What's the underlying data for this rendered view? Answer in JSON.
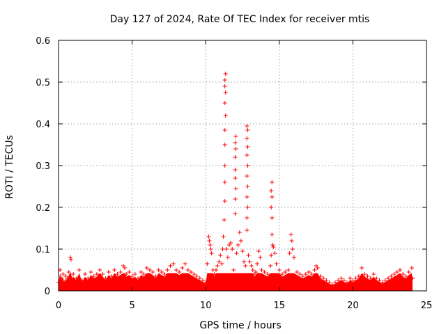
{
  "chart_data": {
    "type": "scatter",
    "title": "Day 127 of 2024, Rate Of TEC Index for receiver mtis",
    "xlabel": "GPS time / hours",
    "ylabel": "ROTI / TECUs",
    "xlim": [
      0,
      25
    ],
    "ylim": [
      0,
      0.6
    ],
    "xticks": [
      0,
      5,
      10,
      15,
      20,
      25
    ],
    "xtick_labels": [
      "0",
      "5",
      "10",
      "15",
      "20",
      "25"
    ],
    "yticks": [
      0,
      0.1,
      0.2,
      0.3,
      0.4,
      0.5,
      0.6
    ],
    "ytick_labels": [
      "0",
      "0.1",
      "0.2",
      "0.3",
      "0.4",
      "0.5",
      "0.6"
    ],
    "grid": true,
    "marker": "+",
    "color": "#ff0000",
    "series": [
      {
        "name": "mtis",
        "points": [
          [
            0.0,
            0.02
          ],
          [
            0.1,
            0.05
          ],
          [
            0.2,
            0.03
          ],
          [
            0.3,
            0.04
          ],
          [
            0.4,
            0.02
          ],
          [
            0.5,
            0.035
          ],
          [
            0.6,
            0.03
          ],
          [
            0.7,
            0.045
          ],
          [
            0.8,
            0.08
          ],
          [
            0.85,
            0.075
          ],
          [
            0.9,
            0.03
          ],
          [
            1.0,
            0.04
          ],
          [
            1.2,
            0.03
          ],
          [
            1.4,
            0.05
          ],
          [
            1.6,
            0.025
          ],
          [
            1.8,
            0.04
          ],
          [
            2.0,
            0.03
          ],
          [
            2.2,
            0.045
          ],
          [
            2.4,
            0.035
          ],
          [
            2.6,
            0.04
          ],
          [
            2.8,
            0.05
          ],
          [
            3.0,
            0.04
          ],
          [
            3.2,
            0.03
          ],
          [
            3.4,
            0.045
          ],
          [
            3.6,
            0.035
          ],
          [
            3.8,
            0.05
          ],
          [
            4.0,
            0.04
          ],
          [
            4.2,
            0.045
          ],
          [
            4.4,
            0.06
          ],
          [
            4.5,
            0.055
          ],
          [
            4.6,
            0.04
          ],
          [
            4.8,
            0.045
          ],
          [
            5.0,
            0.035
          ],
          [
            5.2,
            0.04
          ],
          [
            5.4,
            0.03
          ],
          [
            5.6,
            0.045
          ],
          [
            5.8,
            0.04
          ],
          [
            6.0,
            0.055
          ],
          [
            6.2,
            0.05
          ],
          [
            6.4,
            0.045
          ],
          [
            6.6,
            0.035
          ],
          [
            6.8,
            0.05
          ],
          [
            7.0,
            0.045
          ],
          [
            7.2,
            0.04
          ],
          [
            7.4,
            0.05
          ],
          [
            7.6,
            0.06
          ],
          [
            7.8,
            0.065
          ],
          [
            8.0,
            0.05
          ],
          [
            8.2,
            0.045
          ],
          [
            8.4,
            0.055
          ],
          [
            8.6,
            0.065
          ],
          [
            8.8,
            0.05
          ],
          [
            9.0,
            0.045
          ],
          [
            9.2,
            0.04
          ],
          [
            9.4,
            0.035
          ],
          [
            9.6,
            0.03
          ],
          [
            9.8,
            0.025
          ],
          [
            10.0,
            0.02
          ],
          [
            10.1,
            0.065
          ],
          [
            10.2,
            0.13
          ],
          [
            10.25,
            0.12
          ],
          [
            10.3,
            0.11
          ],
          [
            10.35,
            0.1
          ],
          [
            10.4,
            0.09
          ],
          [
            10.5,
            0.05
          ],
          [
            10.6,
            0.04
          ],
          [
            10.7,
            0.05
          ],
          [
            10.8,
            0.06
          ],
          [
            10.9,
            0.07
          ],
          [
            11.0,
            0.085
          ],
          [
            11.1,
            0.065
          ],
          [
            11.15,
            0.1
          ],
          [
            11.2,
            0.13
          ],
          [
            11.25,
            0.17
          ],
          [
            11.3,
            0.215
          ],
          [
            11.3,
            0.26
          ],
          [
            11.3,
            0.3
          ],
          [
            11.3,
            0.35
          ],
          [
            11.3,
            0.385
          ],
          [
            11.35,
            0.42
          ],
          [
            11.3,
            0.45
          ],
          [
            11.35,
            0.475
          ],
          [
            11.3,
            0.49
          ],
          [
            11.3,
            0.505
          ],
          [
            11.35,
            0.52
          ],
          [
            11.4,
            0.1
          ],
          [
            11.5,
            0.08
          ],
          [
            11.6,
            0.11
          ],
          [
            11.7,
            0.115
          ],
          [
            11.8,
            0.1
          ],
          [
            11.9,
            0.05
          ],
          [
            12.0,
            0.185
          ],
          [
            12.0,
            0.22
          ],
          [
            12.05,
            0.245
          ],
          [
            12.0,
            0.27
          ],
          [
            12.0,
            0.29
          ],
          [
            12.0,
            0.32
          ],
          [
            12.05,
            0.34
          ],
          [
            12.0,
            0.355
          ],
          [
            12.05,
            0.37
          ],
          [
            12.1,
            0.09
          ],
          [
            12.2,
            0.11
          ],
          [
            12.3,
            0.14
          ],
          [
            12.4,
            0.12
          ],
          [
            12.5,
            0.095
          ],
          [
            12.6,
            0.07
          ],
          [
            12.7,
            0.06
          ],
          [
            12.8,
            0.145
          ],
          [
            12.8,
            0.175
          ],
          [
            12.85,
            0.2
          ],
          [
            12.8,
            0.225
          ],
          [
            12.85,
            0.25
          ],
          [
            12.8,
            0.275
          ],
          [
            12.85,
            0.3
          ],
          [
            12.8,
            0.325
          ],
          [
            12.85,
            0.345
          ],
          [
            12.8,
            0.365
          ],
          [
            12.85,
            0.385
          ],
          [
            12.8,
            0.395
          ],
          [
            12.9,
            0.085
          ],
          [
            13.0,
            0.07
          ],
          [
            13.1,
            0.06
          ],
          [
            13.2,
            0.05
          ],
          [
            13.3,
            0.04
          ],
          [
            13.4,
            0.045
          ],
          [
            13.5,
            0.065
          ],
          [
            13.6,
            0.095
          ],
          [
            13.7,
            0.08
          ],
          [
            13.8,
            0.05
          ],
          [
            14.0,
            0.045
          ],
          [
            14.2,
            0.04
          ],
          [
            14.4,
            0.06
          ],
          [
            14.45,
            0.085
          ],
          [
            14.5,
            0.135
          ],
          [
            14.5,
            0.175
          ],
          [
            14.45,
            0.2
          ],
          [
            14.5,
            0.225
          ],
          [
            14.45,
            0.24
          ],
          [
            14.5,
            0.26
          ],
          [
            14.55,
            0.11
          ],
          [
            14.6,
            0.105
          ],
          [
            14.7,
            0.09
          ],
          [
            14.8,
            0.065
          ],
          [
            15.0,
            0.05
          ],
          [
            15.2,
            0.04
          ],
          [
            15.4,
            0.045
          ],
          [
            15.6,
            0.05
          ],
          [
            15.7,
            0.09
          ],
          [
            15.8,
            0.135
          ],
          [
            15.85,
            0.12
          ],
          [
            15.9,
            0.1
          ],
          [
            16.0,
            0.08
          ],
          [
            16.2,
            0.045
          ],
          [
            16.4,
            0.04
          ],
          [
            16.6,
            0.035
          ],
          [
            16.8,
            0.04
          ],
          [
            17.0,
            0.045
          ],
          [
            17.2,
            0.04
          ],
          [
            17.4,
            0.05
          ],
          [
            17.5,
            0.06
          ],
          [
            17.6,
            0.055
          ],
          [
            17.8,
            0.035
          ],
          [
            18.0,
            0.03
          ],
          [
            18.2,
            0.025
          ],
          [
            18.4,
            0.02
          ],
          [
            18.6,
            0.015
          ],
          [
            18.8,
            0.02
          ],
          [
            19.0,
            0.025
          ],
          [
            19.2,
            0.03
          ],
          [
            19.4,
            0.025
          ],
          [
            19.6,
            0.02
          ],
          [
            19.8,
            0.03
          ],
          [
            20.0,
            0.025
          ],
          [
            20.2,
            0.03
          ],
          [
            20.4,
            0.035
          ],
          [
            20.6,
            0.055
          ],
          [
            20.8,
            0.04
          ],
          [
            21.0,
            0.035
          ],
          [
            21.2,
            0.03
          ],
          [
            21.4,
            0.04
          ],
          [
            21.6,
            0.03
          ],
          [
            21.8,
            0.025
          ],
          [
            22.0,
            0.02
          ],
          [
            22.2,
            0.025
          ],
          [
            22.4,
            0.03
          ],
          [
            22.6,
            0.035
          ],
          [
            22.8,
            0.04
          ],
          [
            23.0,
            0.045
          ],
          [
            23.2,
            0.05
          ],
          [
            23.4,
            0.04
          ],
          [
            23.6,
            0.035
          ],
          [
            23.8,
            0.045
          ],
          [
            24.0,
            0.055
          ],
          [
            24.05,
            0.03
          ]
        ]
      }
    ]
  }
}
